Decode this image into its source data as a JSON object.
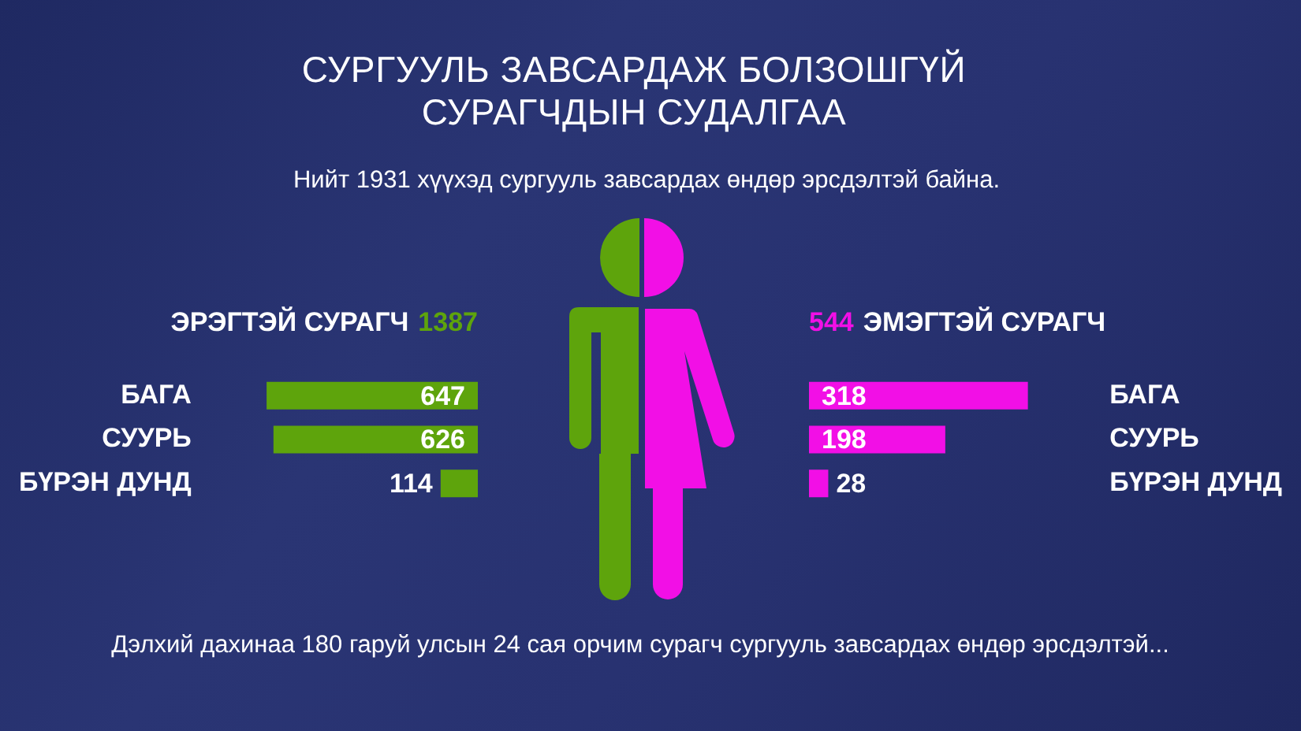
{
  "chart_data": [
    {
      "type": "other",
      "title": "СУРГУУЛЬ ЗАВСАРДАЖ БОЛЗОШГҮЙ СУРАГЧДЫН СУДАЛГАА",
      "subtitle": "Нийт 1931 хүүхэд сургууль завсардах өндөр эрсдэлтэй байна.",
      "annotations": [
        "Дэлхий дахинаа 180 гаруй улсын 24 сая орчим сурагч сургууль завсардах өндөр эрсдэлтэй..."
      ]
    },
    {
      "type": "bar",
      "orientation": "horizontal",
      "title": "ЭРЭГТЭЙ СУРАГЧ",
      "annotations": [
        "1387"
      ],
      "categories": [
        "БАГА",
        "СУУРЬ",
        "БҮРЭН ДУНД"
      ],
      "values": [
        647,
        626,
        114
      ],
      "color": "#5ea40c",
      "tick_labels": "y",
      "data_labels": true
    },
    {
      "type": "bar",
      "orientation": "horizontal",
      "title": "ЭМЭГТЭЙ СУРАГЧ",
      "annotations": [
        "544"
      ],
      "categories": [
        "БАГА",
        "СУУРЬ",
        "БҮРЭН ДУНД"
      ],
      "values": [
        318,
        198,
        28
      ],
      "color": "#f20fe6",
      "tick_labels": "y",
      "data_labels": true
    }
  ]
}
